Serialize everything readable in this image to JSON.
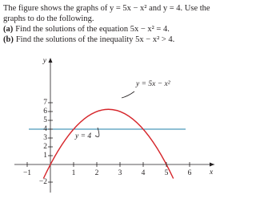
{
  "intro": "The figure shows the graphs of y = 5x − x² and y = 4. Use the graphs to do the following.",
  "parts": [
    {
      "label": "(a)",
      "text": "Find the solutions of the equation 5x − x² = 4."
    },
    {
      "label": "(b)",
      "text": "Find the solutions of the inequality 5x − x² > 4."
    }
  ],
  "figure": {
    "x_label": "x",
    "y_label": "y",
    "curve_label": "y = 5x − x²",
    "line_label": "y = 4",
    "xticks": [
      {
        "value": -1,
        "label": "−1"
      },
      1,
      2,
      3,
      4,
      5,
      6
    ],
    "yticks": [
      7,
      6,
      5,
      4,
      3,
      2,
      1,
      {
        "value": -2,
        "label": "−2"
      }
    ]
  }
}
